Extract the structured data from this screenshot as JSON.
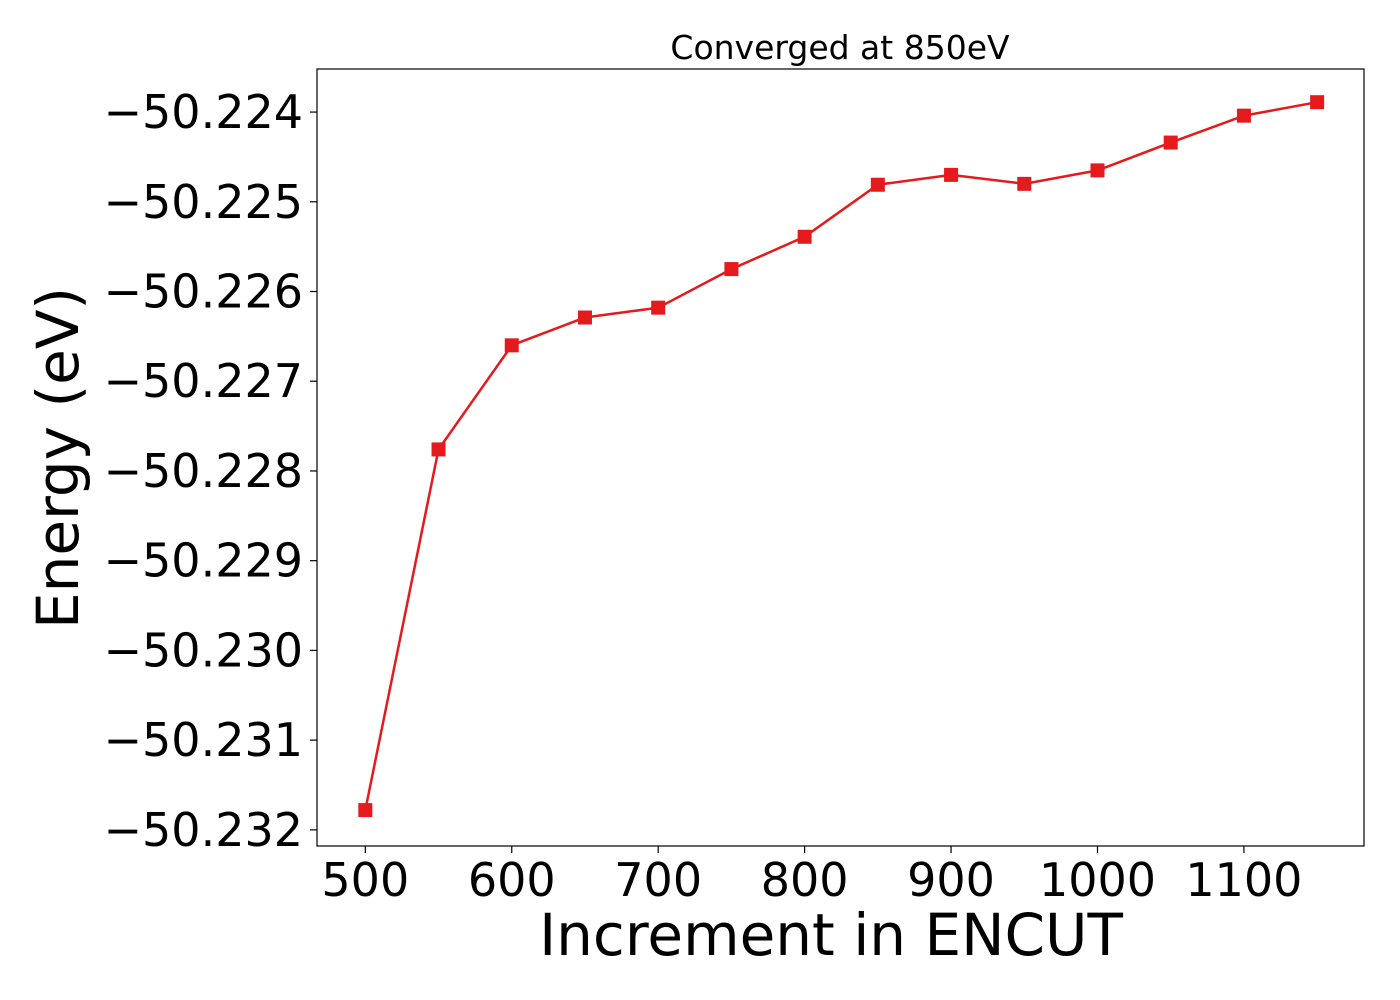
{
  "chart_data": {
    "type": "line",
    "title": "Converged at 850eV",
    "xlabel": "Increment in ENCUT",
    "ylabel": "Energy (eV)",
    "xlim": [
      467,
      1182
    ],
    "ylim": [
      -50.23218,
      -50.22352
    ],
    "xticks": [
      500,
      600,
      700,
      800,
      900,
      1000,
      1100
    ],
    "yticks": [
      -50.224,
      -50.225,
      -50.226,
      -50.227,
      -50.228,
      -50.229,
      -50.23,
      -50.231,
      -50.232
    ],
    "ytick_labels": [
      "−50.224",
      "−50.225",
      "−50.226",
      "−50.227",
      "−50.228",
      "−50.229",
      "−50.230",
      "−50.231",
      "−50.232"
    ],
    "grid": false,
    "legend": "none",
    "marker": "square",
    "color": "#e41a1c",
    "x": [
      500,
      550,
      600,
      650,
      700,
      750,
      800,
      850,
      900,
      950,
      1000,
      1050,
      1100,
      1150
    ],
    "y": [
      -50.23178,
      -50.22776,
      -50.2266,
      -50.22629,
      -50.22618,
      -50.22575,
      -50.22539,
      -50.22481,
      -50.2247,
      -50.2248,
      -50.22465,
      -50.22434,
      -50.22404,
      -50.22389
    ]
  }
}
